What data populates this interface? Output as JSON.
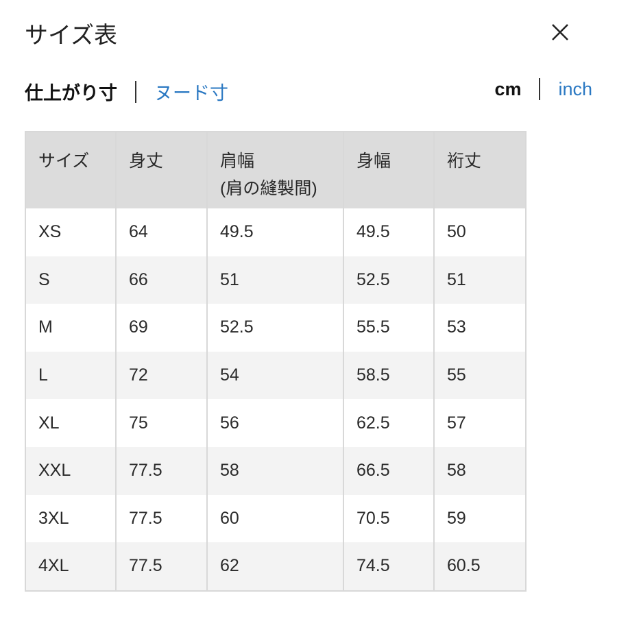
{
  "title": "サイズ表",
  "close_icon": "close-icon",
  "measure_tabs": [
    {
      "label": "仕上がり寸",
      "active": true
    },
    {
      "label": "ヌード寸",
      "active": false
    }
  ],
  "unit_tabs": [
    {
      "label": "cm",
      "active": true
    },
    {
      "label": "inch",
      "active": false
    }
  ],
  "colors": {
    "link": "#2a78c2",
    "header_bg": "#dcdcdc",
    "alt_row_bg": "#f3f3f3"
  },
  "table": {
    "headers": [
      {
        "line1": "サイズ",
        "line2": ""
      },
      {
        "line1": "身丈",
        "line2": ""
      },
      {
        "line1": "肩幅",
        "line2": "(肩の縫製間)"
      },
      {
        "line1": "身幅",
        "line2": ""
      },
      {
        "line1": "裄丈",
        "line2": ""
      }
    ],
    "rows": [
      [
        "XS",
        "64",
        "49.5",
        "49.5",
        "50"
      ],
      [
        "S",
        "66",
        "51",
        "52.5",
        "51"
      ],
      [
        "M",
        "69",
        "52.5",
        "55.5",
        "53"
      ],
      [
        "L",
        "72",
        "54",
        "58.5",
        "55"
      ],
      [
        "XL",
        "75",
        "56",
        "62.5",
        "57"
      ],
      [
        "XXL",
        "77.5",
        "58",
        "66.5",
        "58"
      ],
      [
        "3XL",
        "77.5",
        "60",
        "70.5",
        "59"
      ],
      [
        "4XL",
        "77.5",
        "62",
        "74.5",
        "60.5"
      ]
    ]
  }
}
